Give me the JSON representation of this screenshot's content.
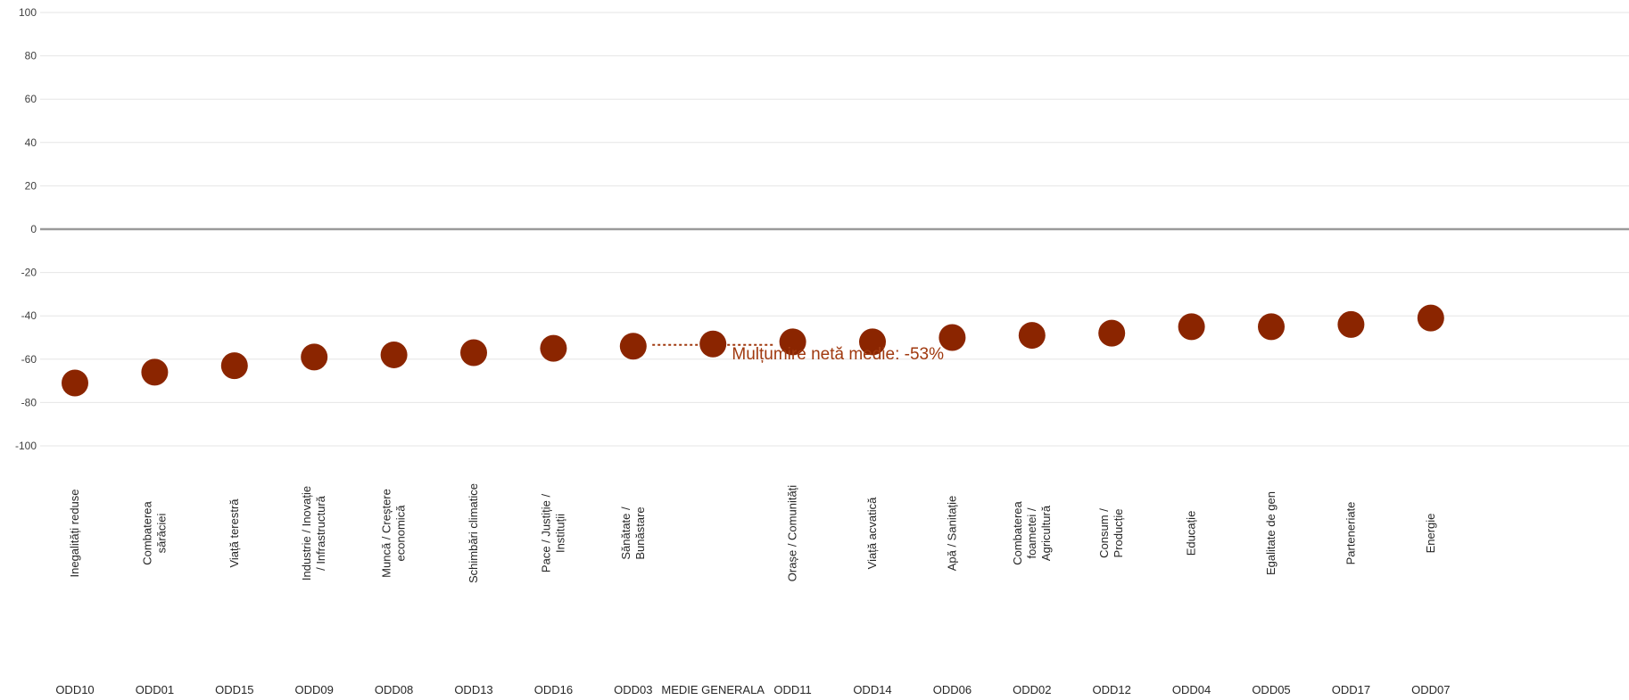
{
  "chart_data": {
    "type": "scatter",
    "ylim": [
      -100,
      100
    ],
    "yticks": [
      100,
      80,
      60,
      40,
      20,
      0,
      -20,
      -40,
      -60,
      -80,
      -100
    ],
    "grid": true,
    "marker_color": "#8B2500",
    "annotation": {
      "text": "Mulțumire netă medie: -53%",
      "color": "#A0390F",
      "value": -53
    },
    "categories": [
      {
        "code": "ODD10",
        "label": [
          "Inegalități reduse"
        ],
        "value": -71
      },
      {
        "code": "ODD01",
        "label": [
          "Combaterea",
          "sărăciei"
        ],
        "value": -66
      },
      {
        "code": "ODD15",
        "label": [
          "Viață terestră"
        ],
        "value": -63
      },
      {
        "code": "ODD09",
        "label": [
          "Industrie / Inovație",
          "/ Infrastructură"
        ],
        "value": -59
      },
      {
        "code": "ODD08",
        "label": [
          "Muncă / Creștere",
          "economică"
        ],
        "value": -58
      },
      {
        "code": "ODD13",
        "label": [
          "Schimbări climatice"
        ],
        "value": -57
      },
      {
        "code": "ODD16",
        "label": [
          "Pace / Justiție /",
          "Instituții"
        ],
        "value": -55
      },
      {
        "code": "ODD03",
        "label": [
          "Sănătate /",
          "Bunăstare"
        ],
        "value": -54
      },
      {
        "code": "MEDIE GENERALA",
        "label": [],
        "value": -53
      },
      {
        "code": "ODD11",
        "label": [
          "Orașe / Comunități"
        ],
        "value": -52
      },
      {
        "code": "ODD14",
        "label": [
          "Viață acvatică"
        ],
        "value": -52
      },
      {
        "code": "ODD06",
        "label": [
          "Apă / Sanitație"
        ],
        "value": -50
      },
      {
        "code": "ODD02",
        "label": [
          "Combaterea",
          "foametei /",
          "Agricultură"
        ],
        "value": -49
      },
      {
        "code": "ODD12",
        "label": [
          "Consum /",
          "Producție"
        ],
        "value": -48
      },
      {
        "code": "ODD04",
        "label": [
          "Educație"
        ],
        "value": -45
      },
      {
        "code": "ODD05",
        "label": [
          "Egalitate de gen"
        ],
        "value": -45
      },
      {
        "code": "ODD17",
        "label": [
          "Parteneriate"
        ],
        "value": -44
      },
      {
        "code": "ODD07",
        "label": [
          "Energie"
        ],
        "value": -41
      }
    ]
  }
}
